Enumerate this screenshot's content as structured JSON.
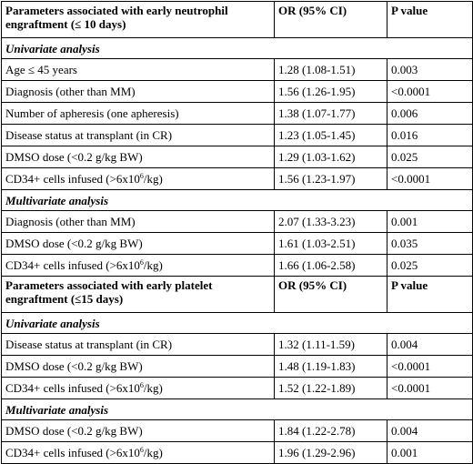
{
  "table": {
    "blocks": [
      {
        "header": {
          "parameter": "Parameters associated with early neutrophil engraftment (≤ 10 days)",
          "or": "OR (95% CI)",
          "p": "P value"
        },
        "sections": [
          {
            "title": "Univariate analysis",
            "rows": [
              {
                "label": "Age ≤ 45 years",
                "or": "1.28 (1.08-1.51)",
                "p": "0.003"
              },
              {
                "label": "Diagnosis (other than MM)",
                "or": "1.56 (1.26-1.95)",
                "p": "<0.0001"
              },
              {
                "label": "Number of apheresis (one apheresis)",
                "or": "1.38 (1.07-1.77)",
                "p": "0.006"
              },
              {
                "label": "Disease status at transplant (in CR)",
                "or": "1.23 (1.05-1.45)",
                "p": "0.016"
              },
              {
                "label": "DMSO dose (<0.2 g/kg BW)",
                "or": "1.29 (1.03-1.62)",
                "p": "0.025"
              },
              {
                "label": "CD34+ cells infused (>6x10",
                "sup": "6",
                "label_end": "/kg)",
                "or": "1.56 (1.23-1.97)",
                "p": "<0.0001"
              }
            ]
          },
          {
            "title": "Multivariate analysis",
            "rows": [
              {
                "label": "Diagnosis (other than MM)",
                "or": "2.07 (1.33-3.23)",
                "p": "0.001"
              },
              {
                "label": "DMSO dose (<0.2 g/kg BW)",
                "or": "1.61 (1.03-2.51)",
                "p": "0.035"
              },
              {
                "label": "CD34+ cells infused (>6x10",
                "sup": "6",
                "label_end": "/kg)",
                "or": "1.66 (1.06-2.58)",
                "p": "0.025"
              }
            ]
          }
        ]
      },
      {
        "header": {
          "parameter": "Parameters associated with early platelet engraftment (≤15 days)",
          "or": "OR (95% CI)",
          "p": "P value"
        },
        "sections": [
          {
            "title": "Univariate analysis",
            "rows": [
              {
                "label": "Disease status at transplant (in CR)",
                "or": "1.32 (1.11-1.59)",
                "p": "0.004"
              },
              {
                "label": "DMSO dose (<0.2 g/kg BW)",
                "or": "1.48 (1.19-1.83)",
                "p": "<0.0001"
              },
              {
                "label": "CD34+ cells infused (>6x10",
                "sup": "6",
                "label_end": "/kg)",
                "or": "1.52 (1.22-1.89)",
                "p": "<0.0001"
              }
            ]
          },
          {
            "title": "Multivariate analysis",
            "rows": [
              {
                "label": "DMSO dose (<0.2 g/kg BW)",
                "or": "1.84 (1.22-2.78)",
                "p": "0.004"
              },
              {
                "label": "CD34+ cells infused (>6x10",
                "sup": "6",
                "label_end": "/kg)",
                "or": "1.96 (1.29-2.96)",
                "p": "0.001"
              }
            ]
          }
        ]
      }
    ]
  }
}
